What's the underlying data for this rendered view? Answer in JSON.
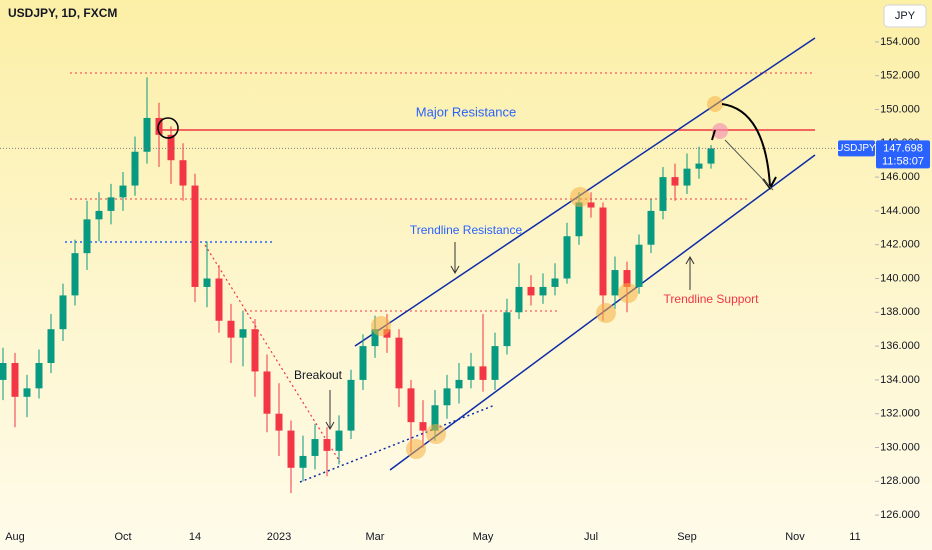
{
  "chart_data": {
    "type": "candlestick",
    "title": "USDJPY, 1D, FXCM",
    "currency": "JPY",
    "symbol": "USDJPY",
    "countdown": "11:58:07",
    "annotations": [
      "Major Resistance",
      "Trendline Resistance",
      "Trendline Support",
      "Breakout"
    ],
    "up_color": "#089981",
    "down_color": "#f23645",
    "categories": [
      null,
      "Aug",
      null,
      null,
      null,
      null,
      null,
      null,
      null,
      null,
      "Oct",
      null,
      null,
      null,
      null,
      null,
      "14",
      null,
      null,
      null,
      null,
      null,
      null,
      "2023",
      null,
      null,
      null,
      null,
      null,
      null,
      null,
      "Mar",
      null,
      null,
      null,
      null,
      null,
      null,
      null,
      null,
      "May",
      null,
      null,
      null,
      null,
      null,
      null,
      null,
      null,
      "Jul",
      null,
      null,
      null,
      null,
      null,
      null,
      null,
      "Sep",
      null,
      null,
      null,
      null,
      null,
      null,
      null,
      null,
      "Nov",
      null,
      null,
      null,
      null,
      "11",
      null
    ],
    "open": [
      134,
      135,
      133,
      133.5,
      135,
      137,
      139,
      141.5,
      143.5,
      144,
      144.8,
      145.5,
      147.5,
      149.5,
      148.5,
      147,
      145.5,
      139.5,
      140,
      137.5,
      136.5,
      137,
      134.5,
      132,
      131,
      128.8,
      129.5,
      130.5,
      129.8,
      131,
      134,
      136,
      137,
      136.5,
      133.5,
      131.5,
      131,
      132.5,
      133.5,
      134,
      134.8,
      134,
      136,
      138,
      139.5,
      139,
      139.5,
      140,
      142.5,
      144.5,
      144.2,
      139,
      140.5,
      139.5,
      142,
      144,
      146,
      145.5,
      146.5,
      146.8,
      null,
      null,
      null,
      null,
      null,
      null,
      null,
      null,
      null,
      null,
      null,
      null,
      null
    ],
    "high": [
      135.9,
      135.6,
      134.3,
      135.8,
      137.9,
      139.7,
      142.3,
      144.6,
      145.1,
      145.6,
      146.3,
      148.4,
      151.9,
      150.4,
      149,
      148,
      146.2,
      142.2,
      140.8,
      138.5,
      138.1,
      137.6,
      135.5,
      133.8,
      131.6,
      130.7,
      131.4,
      131.2,
      131.9,
      134.6,
      136.7,
      137.8,
      137.9,
      137,
      134,
      132.8,
      133.4,
      134.3,
      135,
      135.6,
      137.9,
      136.8,
      138.8,
      140.9,
      140.2,
      140.3,
      140.9,
      143.3,
      145.1,
      145.1,
      144.5,
      141.3,
      141,
      142.6,
      144.7,
      146.6,
      146.8,
      147.4,
      147.8,
      147.9,
      null,
      null,
      null,
      null,
      null,
      null,
      null,
      null,
      null,
      null,
      null,
      null,
      null
    ],
    "low": [
      132.8,
      131.2,
      131.8,
      132.9,
      134.4,
      136.3,
      138.4,
      140.5,
      142.2,
      143.2,
      144,
      144.9,
      146.8,
      146.6,
      145.6,
      144.6,
      138.6,
      138.3,
      136.8,
      135,
      134.8,
      133,
      130.9,
      129.5,
      127.3,
      128,
      128.7,
      128.3,
      129,
      130.5,
      133.4,
      135.3,
      135.6,
      132.4,
      129.7,
      130,
      130.4,
      131.7,
      132.6,
      133.5,
      133.3,
      133.4,
      135.5,
      137.6,
      138.4,
      138.5,
      139,
      139.7,
      142,
      143.6,
      137.5,
      138.2,
      138,
      139.1,
      141.5,
      143.5,
      144.6,
      145,
      145.9,
      146.5,
      null,
      null,
      null,
      null,
      null,
      null,
      null,
      null,
      null,
      null,
      null,
      null,
      null
    ],
    "close": [
      135,
      133,
      133.5,
      135,
      137,
      139,
      141.5,
      143.5,
      144,
      144.8,
      145.5,
      147.5,
      149.5,
      148.5,
      147,
      145.5,
      139.5,
      140,
      137.5,
      136.5,
      137,
      134.5,
      132,
      131,
      128.8,
      129.5,
      130.5,
      129.8,
      131,
      134,
      136,
      137,
      136.5,
      133.5,
      131.5,
      131,
      132.5,
      133.5,
      134,
      134.8,
      134,
      136,
      138,
      139.5,
      139,
      139.5,
      140,
      142.5,
      144.5,
      144.2,
      139,
      140.5,
      139.5,
      142,
      144,
      146,
      145.5,
      146.5,
      146.8,
      147.698,
      null,
      null,
      null,
      null,
      null,
      null,
      null,
      null,
      null,
      null,
      null,
      null,
      null
    ],
    "ylim": [
      125,
      155
    ],
    "yticks": [
      {
        "value": 126,
        "label": "126.000"
      },
      {
        "value": 128,
        "label": "128.000"
      },
      {
        "value": 130,
        "label": "130.000"
      },
      {
        "value": 132,
        "label": "132.000"
      },
      {
        "value": 134,
        "label": "134.000"
      },
      {
        "value": 136,
        "label": "136.000"
      },
      {
        "value": 138,
        "label": "138.000"
      },
      {
        "value": 140,
        "label": "140.000"
      },
      {
        "value": 142,
        "label": "142.000"
      },
      {
        "value": 144,
        "label": "144.000"
      },
      {
        "value": 146,
        "label": "146.000"
      },
      {
        "value": 148,
        "label": "148.000"
      },
      {
        "value": 150,
        "label": "150.000"
      },
      {
        "value": 152,
        "label": "152.000"
      },
      {
        "value": 154,
        "label": "154.000"
      }
    ]
  }
}
